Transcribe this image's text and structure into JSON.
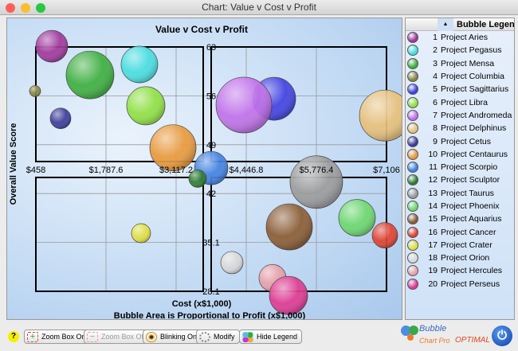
{
  "window": {
    "title": "Chart: Value v Cost v Profit"
  },
  "legend": {
    "title": "Bubble Legend",
    "sort_icon": "sort-up-arrow"
  },
  "toolbar": {
    "help": "?",
    "zoom_on": "Zoom Box On",
    "zoom_off": "Zoom Box Off",
    "blinking": "Blinking On",
    "modify": "Modify",
    "hide_legend": "Hide Legend",
    "brand_1": "Bubble",
    "brand_2": "Chart Pro",
    "brand_3": "OPTIMAL"
  },
  "chart_data": {
    "type": "scatter",
    "title": "Value v Cost v Profit",
    "xlabel": "Cost (x$1,000)",
    "subtitle": "Bubble Area is Proportional to Profit (x$1,000)",
    "ylabel": "Overall Value Score",
    "xlim": [
      458,
      7106
    ],
    "ylim": [
      28.1,
      63
    ],
    "xticks": [
      "$458",
      "$1,787.6",
      "$3,117.2",
      "$4,446.8",
      "$5,776.4",
      "$7,106"
    ],
    "yticks": [
      "63",
      "56",
      "49",
      "42",
      "35.1",
      "28.1"
    ],
    "quadrant_cross": {
      "x": 3782,
      "y": 45.5
    },
    "series": [
      {
        "n": 1,
        "name": "Project Aries",
        "x": 760,
        "y": 63.1,
        "size": 400,
        "color": "#a0359a"
      },
      {
        "n": 2,
        "name": "Project Pegasus",
        "x": 2422,
        "y": 60.5,
        "size": 529,
        "color": "#45dde0"
      },
      {
        "n": 3,
        "name": "Project Mensa",
        "x": 1485,
        "y": 59.0,
        "size": 900,
        "color": "#3cae3c"
      },
      {
        "n": 4,
        "name": "Project Columbia",
        "x": 443,
        "y": 56.7,
        "size": 49,
        "color": "#858540"
      },
      {
        "n": 5,
        "name": "Project Sagittarius",
        "x": 4976,
        "y": 55.6,
        "size": 729,
        "color": "#4040e0"
      },
      {
        "n": 6,
        "name": "Project Libra",
        "x": 2543,
        "y": 54.6,
        "size": 576,
        "color": "#8ee040"
      },
      {
        "n": 7,
        "name": "Project Andromeda",
        "x": 4402,
        "y": 54.7,
        "size": 1225,
        "color": "#c070e8"
      },
      {
        "n": 8,
        "name": "Project Delphinus",
        "x": 7076,
        "y": 53.2,
        "size": 1024,
        "color": "#e8c078"
      },
      {
        "n": 9,
        "name": "Project Cetus",
        "x": 926,
        "y": 52.8,
        "size": 169,
        "color": "#3a3a98"
      },
      {
        "n": 10,
        "name": "Project Centaurus",
        "x": 3057,
        "y": 48.6,
        "size": 841,
        "color": "#e89838"
      },
      {
        "n": 11,
        "name": "Project Scorpio",
        "x": 3782,
        "y": 45.7,
        "size": 441,
        "color": "#4080e0"
      },
      {
        "n": 12,
        "name": "Project Sculptor",
        "x": 3525,
        "y": 44.2,
        "size": 121,
        "color": "#2f7a2f"
      },
      {
        "n": 13,
        "name": "Project Taurus",
        "x": 5776,
        "y": 43.7,
        "size": 1089,
        "color": "#9a9a9a"
      },
      {
        "n": 14,
        "name": "Project Phoenix",
        "x": 6547,
        "y": 38.6,
        "size": 529,
        "color": "#6cd86c"
      },
      {
        "n": 15,
        "name": "Project Aquarius",
        "x": 5263,
        "y": 37.3,
        "size": 841,
        "color": "#8a5a30"
      },
      {
        "n": 16,
        "name": "Project Cancer",
        "x": 7076,
        "y": 36.1,
        "size": 256,
        "color": "#e04030"
      },
      {
        "n": 17,
        "name": "Project Crater",
        "x": 2452,
        "y": 36.4,
        "size": 144,
        "color": "#e0e040"
      },
      {
        "n": 18,
        "name": "Project Orion",
        "x": 4175,
        "y": 32.2,
        "size": 196,
        "color": "#d8d8d8"
      },
      {
        "n": 19,
        "name": "Project Hercules",
        "x": 4945,
        "y": 30.0,
        "size": 289,
        "color": "#e8a0a8"
      },
      {
        "n": 20,
        "name": "Project Perseus",
        "x": 5248,
        "y": 27.5,
        "size": 576,
        "color": "#e03890"
      }
    ]
  }
}
